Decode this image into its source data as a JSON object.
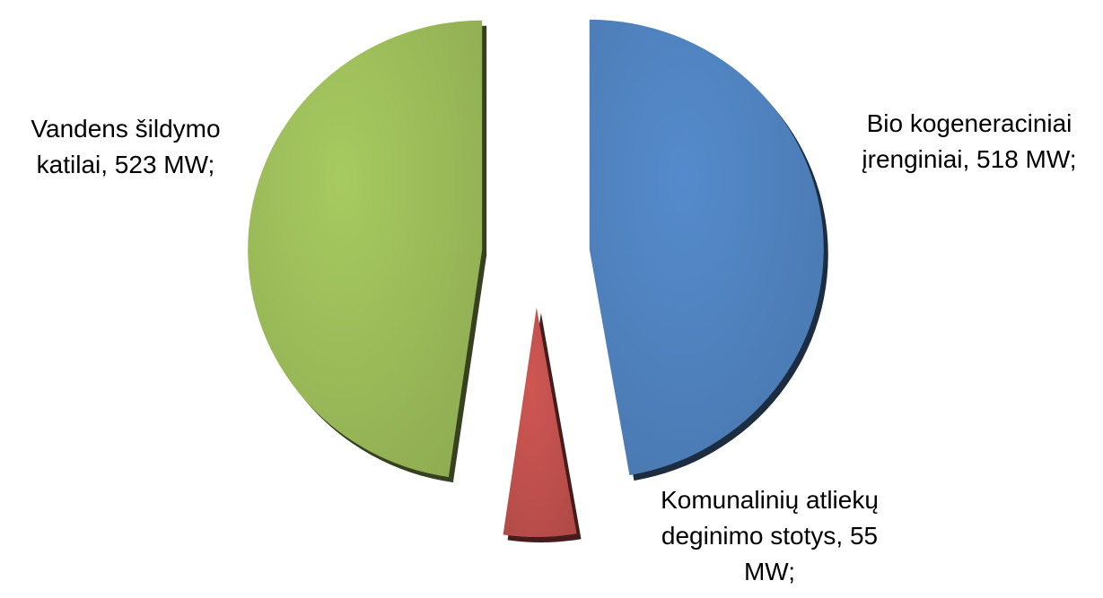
{
  "chart_data": {
    "type": "pie",
    "values": [
      518,
      55,
      523
    ],
    "value_labels": [
      "Bio kogeneraciniai įrenginiai, 518 MW;",
      "Komunalinių atliekų deginimo stotys, 55 MW;",
      "Vandens šildymo katilai, 523 MW;"
    ],
    "colors": [
      "#4f81bd",
      "#c0504d",
      "#9bbb59"
    ]
  }
}
